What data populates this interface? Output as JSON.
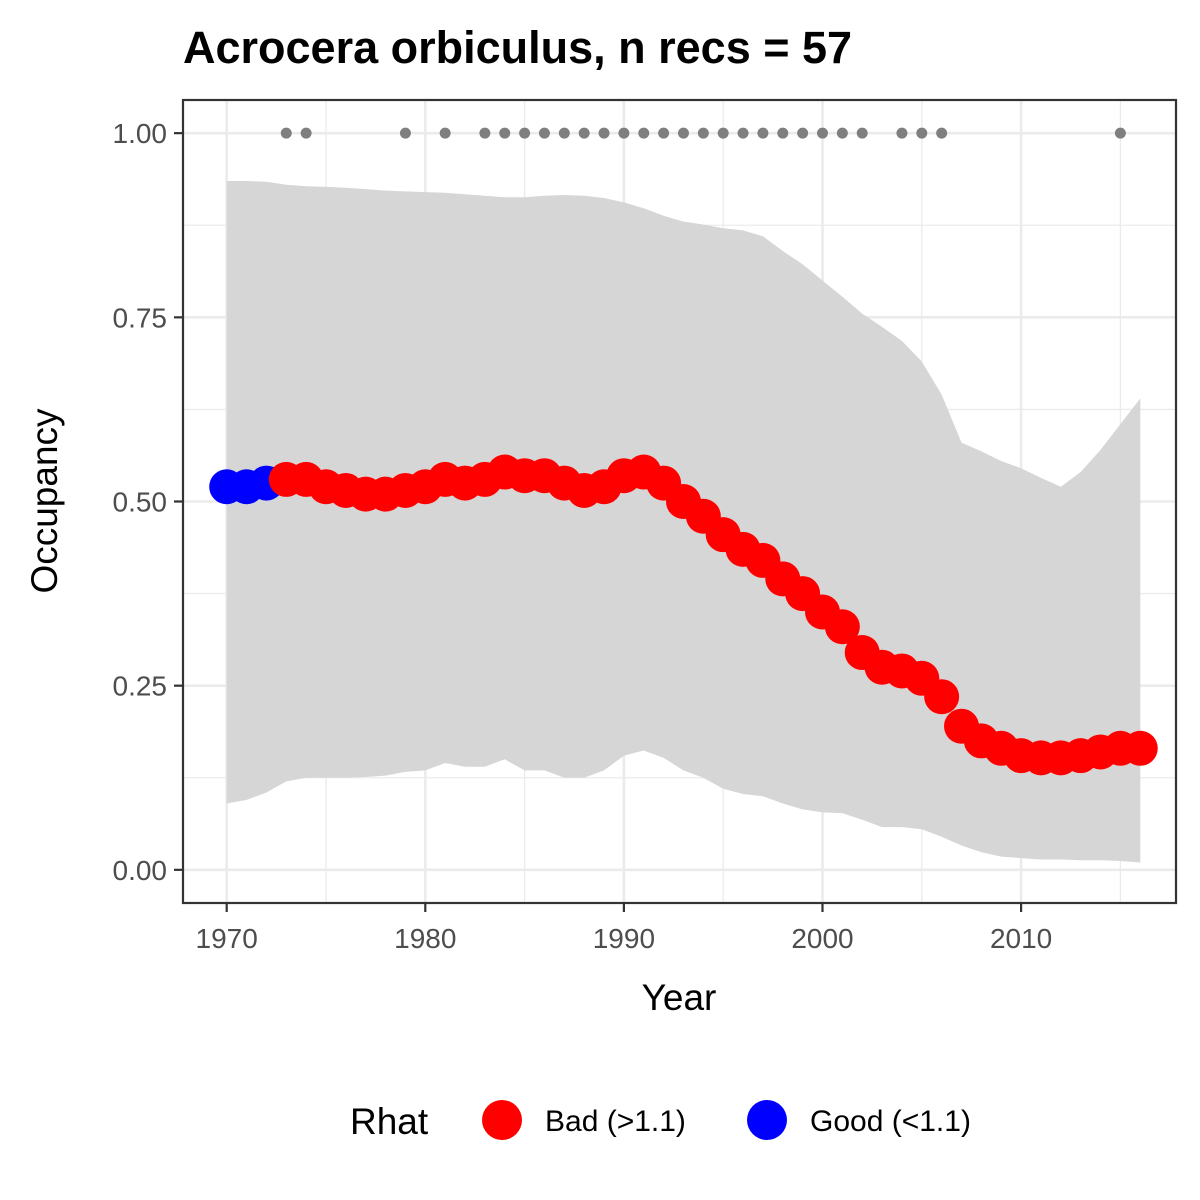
{
  "chart_data": {
    "type": "line",
    "title": "Acrocera orbiculus, n recs = 57",
    "xlabel": "Year",
    "ylabel": "Occupancy",
    "xlim": [
      1967.8,
      2017.8
    ],
    "ylim": [
      -0.045,
      1.045
    ],
    "x_ticks": [
      1970,
      1980,
      1990,
      2000,
      2010
    ],
    "y_ticks": [
      0.0,
      0.25,
      0.5,
      0.75,
      1.0
    ],
    "x_tick_labels": [
      "1970",
      "1980",
      "1990",
      "2000",
      "2010"
    ],
    "y_tick_labels": [
      "0.00",
      "0.25",
      "0.50",
      "0.75",
      "1.00"
    ],
    "grid": true,
    "years": [
      1970,
      1971,
      1972,
      1973,
      1974,
      1975,
      1976,
      1977,
      1978,
      1979,
      1980,
      1981,
      1982,
      1983,
      1984,
      1985,
      1986,
      1987,
      1988,
      1989,
      1990,
      1991,
      1992,
      1993,
      1994,
      1995,
      1996,
      1997,
      1998,
      1999,
      2000,
      2001,
      2002,
      2003,
      2004,
      2005,
      2006,
      2007,
      2008,
      2009,
      2010,
      2011,
      2012,
      2013,
      2014,
      2015,
      2016
    ],
    "occupancy": [
      0.52,
      0.52,
      0.525,
      0.53,
      0.53,
      0.52,
      0.515,
      0.51,
      0.51,
      0.515,
      0.52,
      0.53,
      0.525,
      0.53,
      0.54,
      0.535,
      0.535,
      0.525,
      0.515,
      0.52,
      0.535,
      0.54,
      0.525,
      0.5,
      0.48,
      0.455,
      0.435,
      0.42,
      0.395,
      0.375,
      0.35,
      0.33,
      0.295,
      0.275,
      0.27,
      0.26,
      0.235,
      0.195,
      0.175,
      0.165,
      0.155,
      0.152,
      0.152,
      0.155,
      0.16,
      0.165,
      0.165
    ],
    "rhat_status": [
      "Good",
      "Good",
      "Good",
      "Bad",
      "Bad",
      "Bad",
      "Bad",
      "Bad",
      "Bad",
      "Bad",
      "Bad",
      "Bad",
      "Bad",
      "Bad",
      "Bad",
      "Bad",
      "Bad",
      "Bad",
      "Bad",
      "Bad",
      "Bad",
      "Bad",
      "Bad",
      "Bad",
      "Bad",
      "Bad",
      "Bad",
      "Bad",
      "Bad",
      "Bad",
      "Bad",
      "Bad",
      "Bad",
      "Bad",
      "Bad",
      "Bad",
      "Bad",
      "Bad",
      "Bad",
      "Bad",
      "Bad",
      "Bad",
      "Bad",
      "Bad",
      "Bad",
      "Bad",
      "Bad"
    ],
    "ci_upper": [
      0.935,
      0.935,
      0.934,
      0.93,
      0.928,
      0.927,
      0.926,
      0.924,
      0.922,
      0.921,
      0.92,
      0.919,
      0.917,
      0.915,
      0.913,
      0.913,
      0.915,
      0.916,
      0.915,
      0.912,
      0.906,
      0.898,
      0.888,
      0.88,
      0.876,
      0.871,
      0.868,
      0.86,
      0.84,
      0.822,
      0.8,
      0.778,
      0.755,
      0.737,
      0.718,
      0.69,
      0.645,
      0.58,
      0.568,
      0.555,
      0.545,
      0.532,
      0.52,
      0.54,
      0.57,
      0.605,
      0.64
    ],
    "ci_lower": [
      0.09,
      0.095,
      0.105,
      0.12,
      0.125,
      0.125,
      0.125,
      0.126,
      0.128,
      0.133,
      0.135,
      0.145,
      0.14,
      0.14,
      0.15,
      0.135,
      0.135,
      0.125,
      0.125,
      0.135,
      0.155,
      0.162,
      0.152,
      0.135,
      0.125,
      0.11,
      0.103,
      0.1,
      0.09,
      0.082,
      0.078,
      0.077,
      0.068,
      0.058,
      0.058,
      0.055,
      0.045,
      0.033,
      0.024,
      0.018,
      0.016,
      0.014,
      0.014,
      0.013,
      0.013,
      0.012,
      0.01
    ],
    "record_years": [
      1973,
      1974,
      1979,
      1981,
      1983,
      1984,
      1985,
      1986,
      1987,
      1988,
      1989,
      1990,
      1991,
      1992,
      1993,
      1994,
      1995,
      1996,
      1997,
      1998,
      1999,
      2000,
      2001,
      2002,
      2004,
      2005,
      2006,
      2015
    ],
    "record_y": 1.0,
    "legend": {
      "title": "Rhat",
      "position": "bottom",
      "entries": [
        {
          "label": "Bad (>1.1)",
          "key": "Bad",
          "color": "#ff0000"
        },
        {
          "label": "Good (<1.1)",
          "key": "Good",
          "color": "#0000ff"
        }
      ]
    },
    "colors": {
      "ribbon": "#d6d6d6",
      "record_points": "#7f7f7f",
      "grid_major": "#ebebeb",
      "panel_border": "#333333"
    }
  }
}
